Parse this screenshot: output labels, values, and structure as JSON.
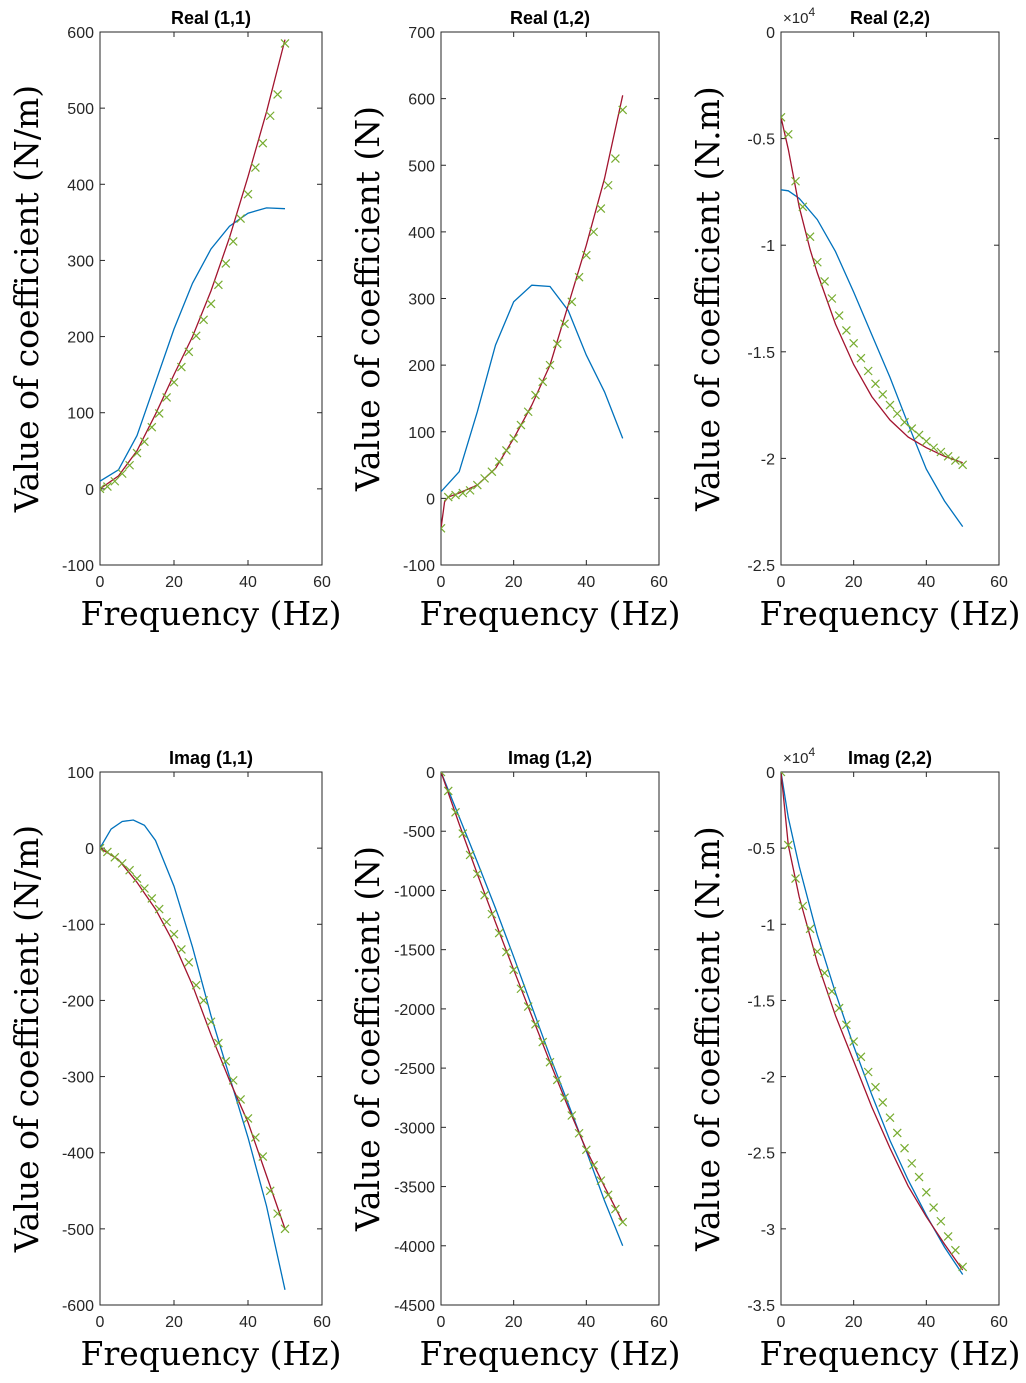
{
  "colors": {
    "model": "#0072BD",
    "reference": "#A2142F",
    "identified": "#77AC30",
    "axis": "#262626"
  },
  "chart_data": [
    {
      "type": "line",
      "title": "Real (1,1)",
      "xlabel": "Frequency (Hz)",
      "ylabel": "Value of coefficient (N/m)",
      "xlim": [
        0,
        60
      ],
      "ylim": [
        -100,
        600
      ],
      "xticks": [
        0,
        20,
        40,
        60
      ],
      "yticks": [
        -100,
        0,
        100,
        200,
        300,
        400,
        500,
        600
      ],
      "exponent": "",
      "series": [
        {
          "style": "line",
          "color": "#0072BD",
          "x": [
            0,
            5,
            10,
            15,
            20,
            25,
            30,
            35,
            40,
            45,
            50
          ],
          "y": [
            10,
            25,
            70,
            140,
            210,
            270,
            315,
            345,
            362,
            369,
            368
          ]
        },
        {
          "style": "line",
          "color": "#A2142F",
          "x": [
            0,
            5,
            10,
            15,
            20,
            25,
            30,
            35,
            40,
            45,
            50
          ],
          "y": [
            0,
            17,
            50,
            98,
            150,
            200,
            260,
            330,
            410,
            495,
            590
          ]
        },
        {
          "style": "markers",
          "color": "#77AC30",
          "x": [
            0,
            2,
            4,
            6,
            8,
            10,
            12,
            14,
            16,
            18,
            20,
            22,
            24,
            26,
            28,
            30,
            32,
            34,
            36,
            38,
            40,
            42,
            44,
            46,
            48,
            50
          ],
          "y": [
            0,
            3,
            10,
            20,
            31,
            47,
            62,
            81,
            99,
            120,
            140,
            160,
            180,
            201,
            222,
            243,
            268,
            296,
            325,
            355,
            387,
            422,
            454,
            490,
            518,
            585
          ]
        }
      ]
    },
    {
      "type": "line",
      "title": "Real (1,2)",
      "xlabel": "Frequency (Hz)",
      "ylabel": "Value of coefficient (N)",
      "xlim": [
        0,
        60
      ],
      "ylim": [
        -100,
        700
      ],
      "xticks": [
        0,
        20,
        40,
        60
      ],
      "yticks": [
        -100,
        0,
        100,
        200,
        300,
        400,
        500,
        600,
        700
      ],
      "exponent": "",
      "series": [
        {
          "style": "line",
          "color": "#0072BD",
          "x": [
            0,
            5,
            10,
            15,
            20,
            25,
            30,
            35,
            40,
            45,
            50
          ],
          "y": [
            10,
            40,
            130,
            230,
            295,
            320,
            318,
            282,
            215,
            160,
            90
          ]
        },
        {
          "style": "line",
          "color": "#A2142F",
          "x": [
            0,
            1,
            2,
            5,
            10,
            15,
            20,
            25,
            30,
            35,
            40,
            45,
            50
          ],
          "y": [
            -45,
            -5,
            2,
            8,
            20,
            45,
            90,
            140,
            200,
            290,
            380,
            480,
            605
          ]
        },
        {
          "style": "markers",
          "color": "#77AC30",
          "x": [
            0,
            2,
            4,
            6,
            8,
            10,
            12,
            14,
            16,
            18,
            20,
            22,
            24,
            26,
            28,
            30,
            32,
            34,
            36,
            38,
            40,
            42,
            44,
            46,
            48,
            50
          ],
          "y": [
            -45,
            2,
            5,
            8,
            12,
            20,
            30,
            40,
            55,
            72,
            90,
            110,
            130,
            155,
            175,
            200,
            232,
            262,
            295,
            332,
            365,
            400,
            435,
            470,
            510,
            583
          ]
        }
      ]
    },
    {
      "type": "line",
      "title": "Real (2,2)",
      "xlabel": "Frequency (Hz)",
      "ylabel": "Value of coefficient (N.m)",
      "xlim": [
        0,
        60
      ],
      "ylim": [
        -2.5,
        0
      ],
      "xticks": [
        0,
        20,
        40,
        60
      ],
      "yticks": [
        -2.5,
        -2,
        -1.5,
        -1,
        -0.5,
        0
      ],
      "exponent": "4",
      "series": [
        {
          "style": "line",
          "color": "#0072BD",
          "x": [
            0,
            2,
            5,
            10,
            15,
            20,
            25,
            30,
            35,
            40,
            45,
            50
          ],
          "y": [
            -0.74,
            -0.745,
            -0.78,
            -0.88,
            -1.03,
            -1.22,
            -1.42,
            -1.62,
            -1.84,
            -2.05,
            -2.2,
            -2.32
          ]
        },
        {
          "style": "line",
          "color": "#A2142F",
          "x": [
            0,
            2,
            5,
            8,
            10,
            15,
            20,
            25,
            30,
            35,
            40,
            45,
            50
          ],
          "y": [
            -0.4,
            -0.55,
            -0.82,
            -1.02,
            -1.13,
            -1.37,
            -1.56,
            -1.71,
            -1.82,
            -1.9,
            -1.95,
            -1.99,
            -2.02
          ]
        },
        {
          "style": "markers",
          "color": "#77AC30",
          "x": [
            0,
            2,
            4,
            6,
            8,
            10,
            12,
            14,
            16,
            18,
            20,
            22,
            24,
            26,
            28,
            30,
            32,
            34,
            36,
            38,
            40,
            42,
            44,
            46,
            48,
            50
          ],
          "y": [
            -0.4,
            -0.48,
            -0.7,
            -0.82,
            -0.96,
            -1.08,
            -1.17,
            -1.25,
            -1.33,
            -1.4,
            -1.46,
            -1.53,
            -1.59,
            -1.65,
            -1.7,
            -1.75,
            -1.79,
            -1.83,
            -1.86,
            -1.89,
            -1.92,
            -1.95,
            -1.97,
            -1.99,
            -2.01,
            -2.03
          ]
        }
      ]
    },
    {
      "type": "line",
      "title": "Imag (1,1)",
      "xlabel": "Frequency (Hz)",
      "ylabel": "Value of coefficient (N/m)",
      "xlim": [
        0,
        60
      ],
      "ylim": [
        -600,
        100
      ],
      "xticks": [
        0,
        20,
        40,
        60
      ],
      "yticks": [
        -600,
        -500,
        -400,
        -300,
        -200,
        -100,
        0,
        100
      ],
      "exponent": "",
      "series": [
        {
          "style": "line",
          "color": "#0072BD",
          "x": [
            0,
            3,
            6,
            9,
            12,
            15,
            20,
            25,
            30,
            35,
            40,
            45,
            50
          ],
          "y": [
            0,
            25,
            35,
            37,
            30,
            10,
            -50,
            -130,
            -220,
            -300,
            -380,
            -470,
            -580
          ]
        },
        {
          "style": "line",
          "color": "#A2142F",
          "x": [
            0,
            5,
            10,
            15,
            20,
            25,
            30,
            35,
            40,
            45,
            50
          ],
          "y": [
            0,
            -15,
            -45,
            -80,
            -125,
            -180,
            -245,
            -305,
            -360,
            -430,
            -500
          ]
        },
        {
          "style": "markers",
          "color": "#77AC30",
          "x": [
            0,
            2,
            4,
            6,
            8,
            10,
            12,
            14,
            16,
            18,
            20,
            22,
            24,
            26,
            28,
            30,
            32,
            34,
            36,
            38,
            40,
            42,
            44,
            46,
            48,
            50
          ],
          "y": [
            0,
            -5,
            -12,
            -20,
            -29,
            -40,
            -53,
            -66,
            -80,
            -97,
            -113,
            -133,
            -150,
            -180,
            -200,
            -228,
            -256,
            -280,
            -305,
            -330,
            -355,
            -380,
            -405,
            -450,
            -480,
            -500
          ]
        }
      ]
    },
    {
      "type": "line",
      "title": "Imag (1,2)",
      "xlabel": "Frequency (Hz)",
      "ylabel": "Value of coefficient (N)",
      "xlim": [
        0,
        60
      ],
      "ylim": [
        -4500,
        0
      ],
      "xticks": [
        0,
        20,
        40,
        60
      ],
      "yticks": [
        -4500,
        -4000,
        -3500,
        -3000,
        -2500,
        -2000,
        -1500,
        -1000,
        -500,
        0
      ],
      "exponent": "",
      "series": [
        {
          "style": "line",
          "color": "#0072BD",
          "x": [
            0,
            5,
            10,
            15,
            20,
            25,
            30,
            35,
            40,
            45,
            50
          ],
          "y": [
            0,
            -380,
            -760,
            -1150,
            -1560,
            -1980,
            -2400,
            -2800,
            -3200,
            -3620,
            -4000
          ]
        },
        {
          "style": "line",
          "color": "#A2142F",
          "x": [
            0,
            5,
            10,
            15,
            20,
            25,
            30,
            35,
            40,
            45,
            50
          ],
          "y": [
            0,
            -440,
            -860,
            -1270,
            -1670,
            -2060,
            -2450,
            -2830,
            -3190,
            -3500,
            -3800
          ]
        },
        {
          "style": "markers",
          "color": "#77AC30",
          "x": [
            0,
            2,
            4,
            6,
            8,
            10,
            12,
            14,
            16,
            18,
            20,
            22,
            24,
            26,
            28,
            30,
            32,
            34,
            36,
            38,
            40,
            42,
            44,
            46,
            48,
            50
          ],
          "y": [
            0,
            -160,
            -340,
            -520,
            -700,
            -860,
            -1040,
            -1200,
            -1360,
            -1520,
            -1670,
            -1830,
            -1980,
            -2130,
            -2280,
            -2450,
            -2600,
            -2750,
            -2900,
            -3050,
            -3190,
            -3320,
            -3450,
            -3570,
            -3690,
            -3800
          ]
        }
      ]
    },
    {
      "type": "line",
      "title": "Imag (2,2)",
      "xlabel": "Frequency (Hz)",
      "ylabel": "Value of coefficient (N.m)",
      "xlim": [
        0,
        60
      ],
      "ylim": [
        -3.5,
        0
      ],
      "xticks": [
        0,
        20,
        40,
        60
      ],
      "yticks": [
        -3.5,
        -3,
        -2.5,
        -2,
        -1.5,
        -1,
        -0.5,
        0
      ],
      "exponent": "4",
      "series": [
        {
          "style": "line",
          "color": "#0072BD",
          "x": [
            0,
            2,
            5,
            10,
            15,
            20,
            25,
            30,
            35,
            40,
            45,
            50
          ],
          "y": [
            0,
            -0.3,
            -0.62,
            -1.07,
            -1.45,
            -1.8,
            -2.12,
            -2.42,
            -2.68,
            -2.91,
            -3.12,
            -3.3
          ]
        },
        {
          "style": "line",
          "color": "#A2142F",
          "x": [
            0,
            2,
            5,
            10,
            15,
            20,
            25,
            30,
            35,
            40,
            45,
            50
          ],
          "y": [
            0,
            -0.48,
            -0.82,
            -1.25,
            -1.6,
            -1.9,
            -2.2,
            -2.47,
            -2.72,
            -2.92,
            -3.1,
            -3.27
          ]
        },
        {
          "style": "markers",
          "color": "#77AC30",
          "x": [
            0,
            2,
            4,
            6,
            8,
            10,
            12,
            14,
            16,
            18,
            20,
            22,
            24,
            26,
            28,
            30,
            32,
            34,
            36,
            38,
            40,
            42,
            44,
            46,
            48,
            50
          ],
          "y": [
            0,
            -0.48,
            -0.7,
            -0.88,
            -1.03,
            -1.18,
            -1.32,
            -1.44,
            -1.55,
            -1.66,
            -1.77,
            -1.87,
            -1.97,
            -2.07,
            -2.17,
            -2.27,
            -2.37,
            -2.47,
            -2.57,
            -2.66,
            -2.76,
            -2.86,
            -2.95,
            -3.05,
            -3.14,
            -3.25
          ]
        }
      ]
    }
  ]
}
